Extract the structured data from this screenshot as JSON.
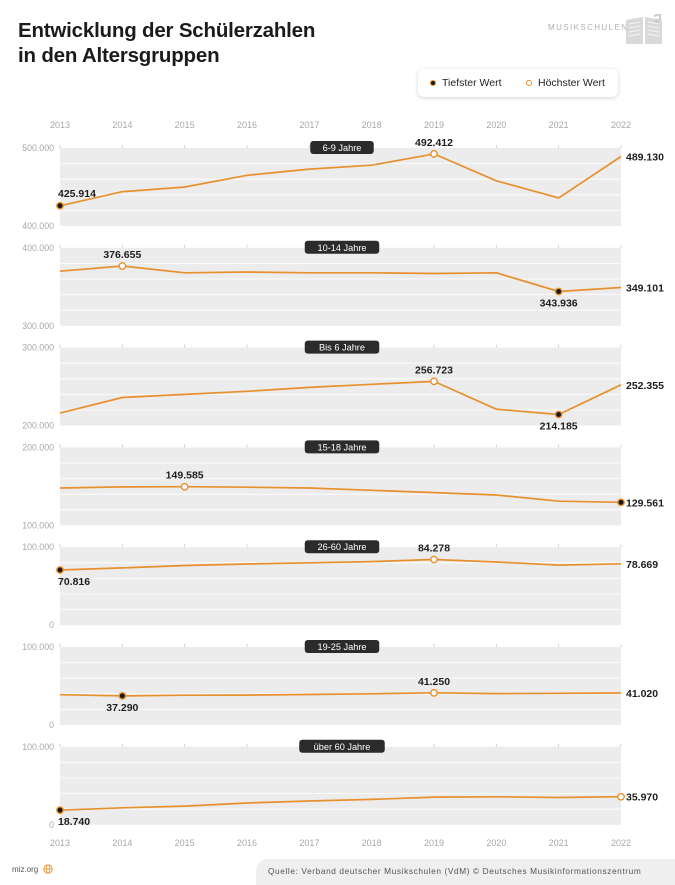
{
  "header": {
    "title_line1": "Entwicklung der Schülerzahlen",
    "title_line2": "in den Altersgruppen",
    "brand": "MUSIKSCHULEN"
  },
  "legend": {
    "low_label": "Tiefster Wert",
    "high_label": "Höchster Wert"
  },
  "colors": {
    "line": "#e8902e",
    "band": "#ececec",
    "low_marker": "#1a1a1a",
    "badge": "#2b2b2b"
  },
  "chart_data": {
    "type": "line",
    "title": "Entwicklung der Schülerzahlen in den Altersgruppen",
    "x": [
      "2013",
      "2014",
      "2015",
      "2016",
      "2017",
      "2018",
      "2019",
      "2020",
      "2021",
      "2022"
    ],
    "panels": [
      {
        "name": "6-9 Jahre",
        "ylim": [
          400000,
          500000
        ],
        "tick_labels": [
          "500.000",
          "400.000"
        ],
        "values": [
          425914,
          444000,
          450000,
          465000,
          473000,
          478000,
          492412,
          458000,
          436000,
          489130
        ],
        "low": {
          "index": 0,
          "label": "425.914"
        },
        "high": {
          "index": 6,
          "label": "492.412"
        },
        "end_label": "489.130"
      },
      {
        "name": "10-14 Jahre",
        "ylim": [
          300000,
          400000
        ],
        "tick_labels": [
          "400.000",
          "300.000"
        ],
        "values": [
          370000,
          376655,
          368000,
          369000,
          368000,
          368000,
          367000,
          368000,
          343936,
          349101
        ],
        "low": {
          "index": 8,
          "label": "343.936"
        },
        "high": {
          "index": 1,
          "label": "376.655"
        },
        "end_label": "349.101"
      },
      {
        "name": "Bis 6 Jahre",
        "ylim": [
          200000,
          300000
        ],
        "tick_labels": [
          "300.000",
          "200.000"
        ],
        "values": [
          216000,
          236000,
          240000,
          244000,
          249000,
          253000,
          256723,
          221000,
          214185,
          252355
        ],
        "low": {
          "index": 8,
          "label": "214.185"
        },
        "high": {
          "index": 6,
          "label": "256.723"
        },
        "end_label": "252.355"
      },
      {
        "name": "15-18 Jahre",
        "ylim": [
          100000,
          200000
        ],
        "tick_labels": [
          "200.000",
          "100.000"
        ],
        "values": [
          148000,
          149300,
          149585,
          149000,
          148000,
          145000,
          142000,
          139000,
          131000,
          129561
        ],
        "low": {
          "index": 9,
          "label": "129.561"
        },
        "high": {
          "index": 2,
          "label": "149.585"
        },
        "end_label": "129.561"
      },
      {
        "name": "26-60 Jahre",
        "ylim": [
          0,
          100000
        ],
        "tick_labels": [
          "100.000",
          "0"
        ],
        "values": [
          70816,
          73500,
          76500,
          78500,
          80000,
          81500,
          84278,
          81000,
          77000,
          78669
        ],
        "low": {
          "index": 0,
          "label": "70.816"
        },
        "high": {
          "index": 6,
          "label": "84.278"
        },
        "end_label": "78.669"
      },
      {
        "name": "19-25 Jahre",
        "ylim": [
          0,
          100000
        ],
        "tick_labels": [
          "100.000",
          "0"
        ],
        "values": [
          38800,
          37290,
          38200,
          38300,
          39100,
          40000,
          41250,
          40300,
          40600,
          41020
        ],
        "low": {
          "index": 1,
          "label": "37.290"
        },
        "high": {
          "index": 6,
          "label": "41.250"
        },
        "end_label": "41.020"
      },
      {
        "name": "über 60 Jahre",
        "ylim": [
          0,
          100000
        ],
        "tick_labels": [
          "100.000",
          "0"
        ],
        "values": [
          18740,
          21800,
          24000,
          28000,
          30500,
          32500,
          35500,
          35900,
          35000,
          35970
        ],
        "low": {
          "index": 0,
          "label": "18.740"
        },
        "high": {
          "index": 9,
          "label": "35.970"
        },
        "end_label": "35.970"
      }
    ]
  },
  "footer": {
    "site": "miz.org",
    "source": "Quelle: Verband deutscher Musikschulen (VdM) © Deutsches Musikinformationszentrum"
  }
}
